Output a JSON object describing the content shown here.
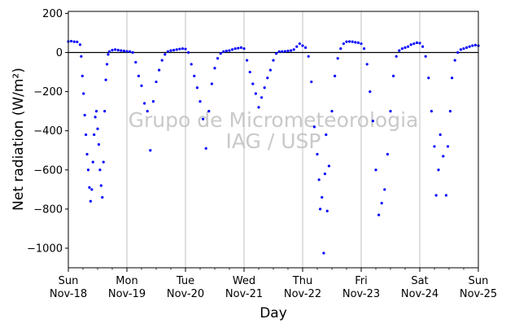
{
  "chart_data": {
    "type": "scatter",
    "xlabel": "Day",
    "ylabel": "Net radiation (W/m²)",
    "ylim": [
      -1100,
      210
    ],
    "xlim": [
      0,
      7
    ],
    "yticks": [
      200,
      0,
      -200,
      -400,
      -600,
      -800,
      -1000
    ],
    "xticks": [
      {
        "x": 0,
        "day": "Sun",
        "date": "Nov-18"
      },
      {
        "x": 1,
        "day": "Mon",
        "date": "Nov-19"
      },
      {
        "x": 2,
        "day": "Tue",
        "date": "Nov-20"
      },
      {
        "x": 3,
        "day": "Wed",
        "date": "Nov-21"
      },
      {
        "x": 4,
        "day": "Thu",
        "date": "Nov-22"
      },
      {
        "x": 5,
        "day": "Fri",
        "date": "Nov-23"
      },
      {
        "x": 6,
        "day": "Sat",
        "date": "Nov-24"
      },
      {
        "x": 7,
        "day": "Sun",
        "date": "Nov-25"
      }
    ],
    "grid": "vertical",
    "zero_line": 0,
    "watermark": [
      "Grupo de Micrometeorologia",
      "IAG / USP"
    ],
    "colors": {
      "points": "#0000ff",
      "grid": "#b0b0b0",
      "zero_line": "#000000"
    },
    "points": [
      [
        0.0,
        56
      ],
      [
        0.05,
        58
      ],
      [
        0.1,
        55
      ],
      [
        0.15,
        54
      ],
      [
        0.2,
        40
      ],
      [
        0.22,
        -20
      ],
      [
        0.24,
        -120
      ],
      [
        0.26,
        -210
      ],
      [
        0.28,
        -320
      ],
      [
        0.3,
        -420
      ],
      [
        0.32,
        -520
      ],
      [
        0.34,
        -600
      ],
      [
        0.36,
        -690
      ],
      [
        0.38,
        -760
      ],
      [
        0.4,
        -700
      ],
      [
        0.42,
        -560
      ],
      [
        0.44,
        -420
      ],
      [
        0.46,
        -330
      ],
      [
        0.48,
        -300
      ],
      [
        0.5,
        -390
      ],
      [
        0.52,
        -470
      ],
      [
        0.54,
        -600
      ],
      [
        0.56,
        -680
      ],
      [
        0.58,
        -740
      ],
      [
        0.6,
        -560
      ],
      [
        0.62,
        -300
      ],
      [
        0.64,
        -140
      ],
      [
        0.66,
        -60
      ],
      [
        0.68,
        -10
      ],
      [
        0.7,
        5
      ],
      [
        0.75,
        12
      ],
      [
        0.8,
        15
      ],
      [
        0.85,
        12
      ],
      [
        0.9,
        10
      ],
      [
        0.95,
        8
      ],
      [
        1.0,
        6
      ],
      [
        1.05,
        5
      ],
      [
        1.1,
        0
      ],
      [
        1.15,
        -50
      ],
      [
        1.2,
        -120
      ],
      [
        1.25,
        -170
      ],
      [
        1.3,
        -260
      ],
      [
        1.35,
        -300
      ],
      [
        1.4,
        -500
      ],
      [
        1.45,
        -250
      ],
      [
        1.5,
        -150
      ],
      [
        1.55,
        -90
      ],
      [
        1.6,
        -40
      ],
      [
        1.65,
        -10
      ],
      [
        1.7,
        5
      ],
      [
        1.75,
        10
      ],
      [
        1.8,
        12
      ],
      [
        1.85,
        15
      ],
      [
        1.9,
        18
      ],
      [
        1.95,
        20
      ],
      [
        2.0,
        18
      ],
      [
        2.05,
        0
      ],
      [
        2.1,
        -60
      ],
      [
        2.15,
        -120
      ],
      [
        2.2,
        -180
      ],
      [
        2.25,
        -250
      ],
      [
        2.3,
        -340
      ],
      [
        2.35,
        -490
      ],
      [
        2.4,
        -300
      ],
      [
        2.45,
        -160
      ],
      [
        2.5,
        -80
      ],
      [
        2.55,
        -30
      ],
      [
        2.6,
        -5
      ],
      [
        2.65,
        5
      ],
      [
        2.7,
        8
      ],
      [
        2.75,
        10
      ],
      [
        2.8,
        15
      ],
      [
        2.85,
        20
      ],
      [
        2.9,
        22
      ],
      [
        2.95,
        25
      ],
      [
        3.0,
        20
      ],
      [
        3.05,
        -40
      ],
      [
        3.1,
        -100
      ],
      [
        3.15,
        -160
      ],
      [
        3.2,
        -210
      ],
      [
        3.25,
        -280
      ],
      [
        3.3,
        -230
      ],
      [
        3.35,
        -180
      ],
      [
        3.4,
        -130
      ],
      [
        3.45,
        -90
      ],
      [
        3.5,
        -40
      ],
      [
        3.55,
        -5
      ],
      [
        3.6,
        5
      ],
      [
        3.65,
        5
      ],
      [
        3.7,
        6
      ],
      [
        3.75,
        8
      ],
      [
        3.8,
        10
      ],
      [
        3.85,
        15
      ],
      [
        3.9,
        30
      ],
      [
        3.95,
        45
      ],
      [
        4.0,
        35
      ],
      [
        4.05,
        25
      ],
      [
        4.1,
        -20
      ],
      [
        4.15,
        -150
      ],
      [
        4.2,
        -380
      ],
      [
        4.25,
        -520
      ],
      [
        4.28,
        -650
      ],
      [
        4.3,
        -800
      ],
      [
        4.33,
        -740
      ],
      [
        4.36,
        -1025
      ],
      [
        4.38,
        -620
      ],
      [
        4.4,
        -420
      ],
      [
        4.42,
        -810
      ],
      [
        4.45,
        -580
      ],
      [
        4.5,
        -300
      ],
      [
        4.55,
        -120
      ],
      [
        4.6,
        -30
      ],
      [
        4.65,
        20
      ],
      [
        4.7,
        45
      ],
      [
        4.75,
        55
      ],
      [
        4.8,
        56
      ],
      [
        4.85,
        55
      ],
      [
        4.9,
        52
      ],
      [
        4.95,
        50
      ],
      [
        5.0,
        45
      ],
      [
        5.05,
        20
      ],
      [
        5.1,
        -60
      ],
      [
        5.15,
        -200
      ],
      [
        5.2,
        -350
      ],
      [
        5.25,
        -600
      ],
      [
        5.3,
        -830
      ],
      [
        5.35,
        -770
      ],
      [
        5.4,
        -700
      ],
      [
        5.45,
        -520
      ],
      [
        5.5,
        -300
      ],
      [
        5.55,
        -120
      ],
      [
        5.6,
        -20
      ],
      [
        5.65,
        10
      ],
      [
        5.7,
        20
      ],
      [
        5.75,
        25
      ],
      [
        5.8,
        30
      ],
      [
        5.85,
        40
      ],
      [
        5.9,
        45
      ],
      [
        5.95,
        50
      ],
      [
        6.0,
        48
      ],
      [
        6.05,
        30
      ],
      [
        6.1,
        -20
      ],
      [
        6.15,
        -130
      ],
      [
        6.2,
        -300
      ],
      [
        6.25,
        -480
      ],
      [
        6.28,
        -730
      ],
      [
        6.32,
        -600
      ],
      [
        6.35,
        -420
      ],
      [
        6.4,
        -530
      ],
      [
        6.45,
        -730
      ],
      [
        6.48,
        -480
      ],
      [
        6.52,
        -300
      ],
      [
        6.55,
        -130
      ],
      [
        6.6,
        -40
      ],
      [
        6.65,
        0
      ],
      [
        6.7,
        15
      ],
      [
        6.75,
        20
      ],
      [
        6.8,
        25
      ],
      [
        6.85,
        30
      ],
      [
        6.9,
        35
      ],
      [
        6.95,
        38
      ],
      [
        7.0,
        35
      ]
    ]
  }
}
